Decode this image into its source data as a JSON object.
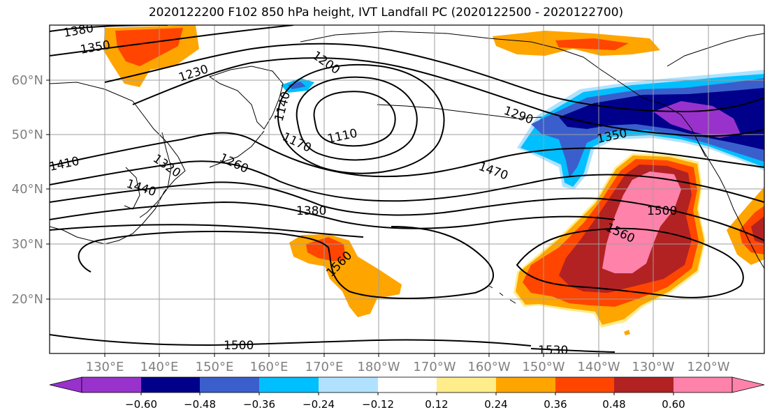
{
  "title": "2020122200 F102 850 hPa height, IVT Landfall PC (2020122500 - 2020122700)",
  "map": {
    "lon_labels": [
      "130°E",
      "140°E",
      "150°E",
      "160°E",
      "170°E",
      "180°W",
      "170°W",
      "160°W",
      "150°W",
      "140°W",
      "130°W",
      "120°W"
    ],
    "lat_labels": [
      "60°N",
      "50°N",
      "40°N",
      "30°N",
      "20°N"
    ],
    "contour_labels": [
      "1380",
      "1350",
      "1230",
      "1200",
      "1140",
      "1170",
      "1110",
      "1290",
      "1350",
      "1410",
      "1320",
      "1260",
      "1470",
      "1440",
      "1380",
      "1500",
      "1560",
      "1560",
      "1500",
      "1530"
    ]
  },
  "colorbar": {
    "colors": [
      "#9932cc",
      "#00008b",
      "#3a5fcd",
      "#00bfff",
      "#b0e2ff",
      "#ffffff",
      "#ffec8b",
      "#ffa500",
      "#ff4500",
      "#b22222",
      "#ff82ab"
    ],
    "tick_labels": [
      "−0.60",
      "−0.48",
      "−0.36",
      "−0.24",
      "−0.12",
      "0.12",
      "0.24",
      "0.36",
      "0.48",
      "0.60"
    ]
  }
}
